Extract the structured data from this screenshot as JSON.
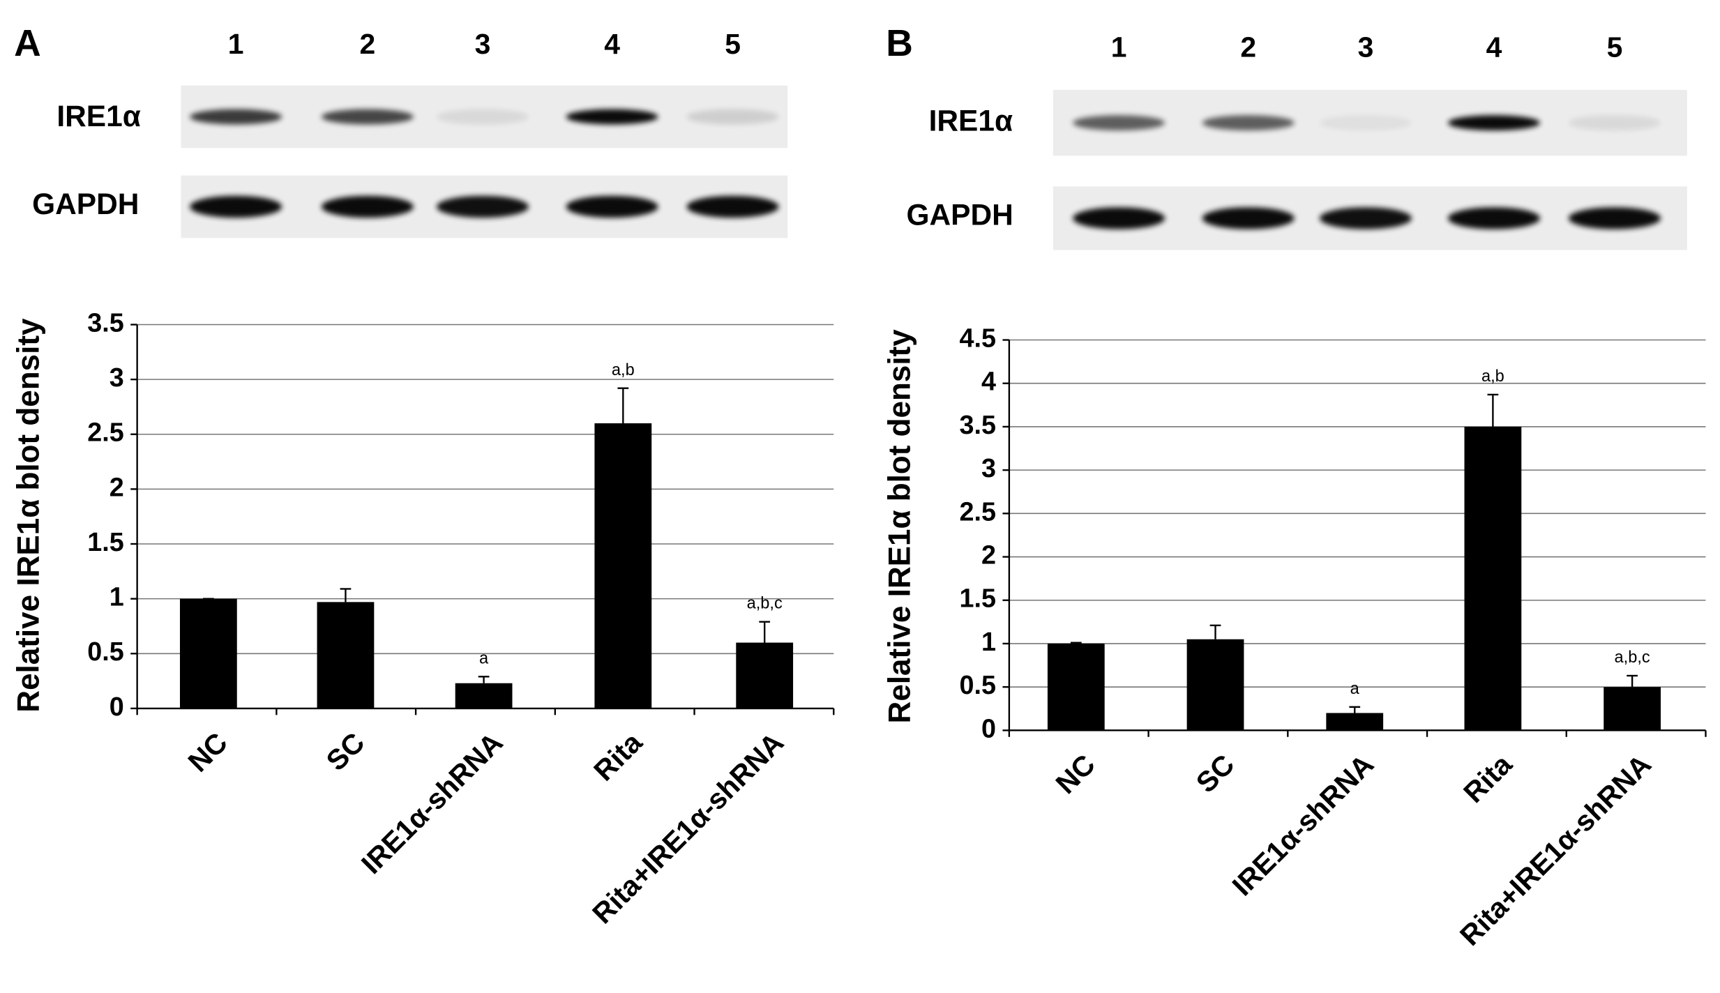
{
  "chart_data": [
    {
      "type": "bar",
      "panel": "A",
      "lanes": [
        "1",
        "2",
        "3",
        "4",
        "5"
      ],
      "blot_rows": [
        "IRE1α",
        "GAPDH"
      ],
      "y_label": "Relative IRE1α blot density",
      "categories": [
        "NC",
        "SC",
        "IRE1α-shRNA",
        "Rita",
        "Rita+IRE1α-shRNA"
      ],
      "values": [
        1,
        0.97,
        0.23,
        2.6,
        0.6
      ],
      "errors": [
        0,
        0.12,
        0.06,
        0.32,
        0.19
      ],
      "annotations": [
        null,
        null,
        "a",
        "a,b",
        "a,b,c"
      ],
      "color": "#000000",
      "ylim": [
        0,
        3.5
      ],
      "yticks": [
        0,
        0.5,
        1,
        1.5,
        2,
        2.5,
        3,
        3.5
      ],
      "grid": true
    },
    {
      "type": "bar",
      "panel": "B",
      "lanes": [
        "1",
        "2",
        "3",
        "4",
        "5"
      ],
      "blot_rows": [
        "IRE1α",
        "GAPDH"
      ],
      "y_label": "Relative IRE1α blot density",
      "categories": [
        "NC",
        "SC",
        "IRE1α-shRNA",
        "Rita",
        "Rita+IRE1α-shRNA"
      ],
      "values": [
        1,
        1.05,
        0.2,
        3.5,
        0.5
      ],
      "errors": [
        0.01,
        0.16,
        0.07,
        0.37,
        0.13
      ],
      "annotations": [
        null,
        null,
        "a",
        "a,b",
        "a,b,c"
      ],
      "color": "#000000",
      "ylim": [
        0,
        4.5
      ],
      "yticks": [
        0,
        0.5,
        1,
        1.5,
        2,
        2.5,
        3,
        3.5,
        4,
        4.5
      ],
      "grid": true
    }
  ]
}
